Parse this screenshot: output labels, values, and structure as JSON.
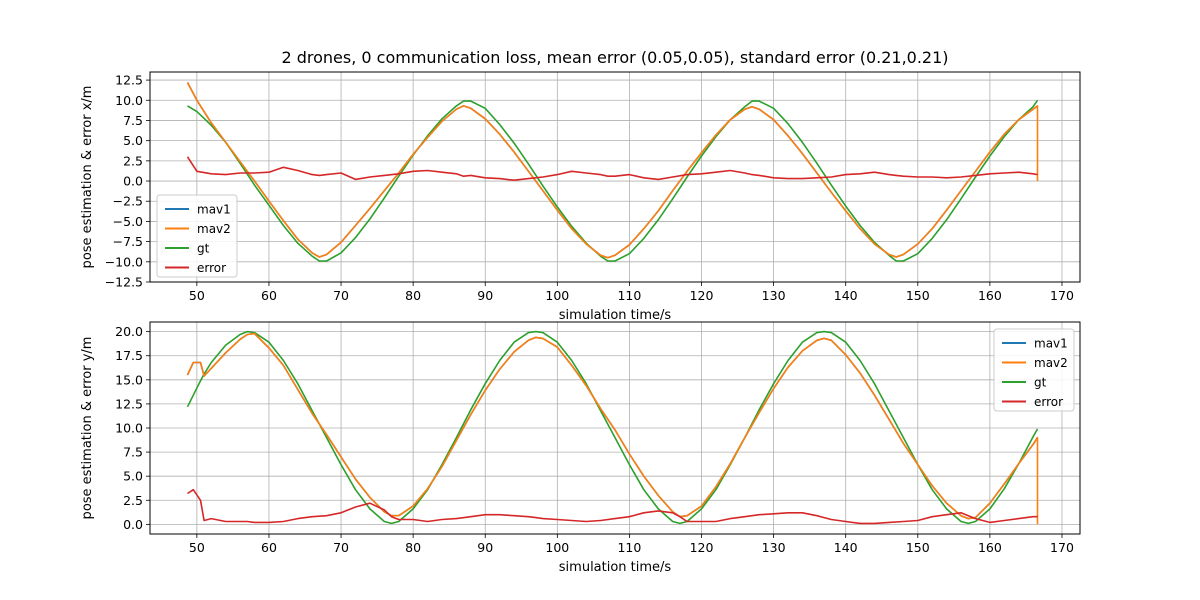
{
  "figure": {
    "title": "2 drones, 0 communication loss, mean error (0.05,0.05), standard error (0.21,0.21)"
  },
  "colors": {
    "mav1": "#1f77b4",
    "mav2": "#ff7f0e",
    "gt": "#2ca02c",
    "error": "#d62728",
    "grid": "#b0b0b0",
    "axes": "#000000"
  },
  "chart_data": [
    {
      "type": "line",
      "xlabel": "simulation time/s",
      "ylabel": "pose estimation & error x/m",
      "xlim": [
        43.5,
        172.5
      ],
      "ylim": [
        -12.5,
        13.5
      ],
      "x_ticks": [
        50,
        60,
        70,
        80,
        90,
        100,
        110,
        120,
        130,
        140,
        150,
        160,
        170
      ],
      "x_tick_labels": [
        "50",
        "60",
        "70",
        "80",
        "90",
        "100",
        "110",
        "120",
        "130",
        "140",
        "150",
        "160",
        "170"
      ],
      "y_ticks": [
        -12.5,
        -10.0,
        -7.5,
        -5.0,
        -2.5,
        0.0,
        2.5,
        5.0,
        7.5,
        10.0,
        12.5
      ],
      "y_tick_labels": [
        "−12.5",
        "−10.0",
        "−7.5",
        "−5.0",
        "−2.5",
        "0.0",
        "2.5",
        "5.0",
        "7.5",
        "10.0",
        "12.5"
      ],
      "grid": true,
      "legend_position": "center-left",
      "x": [
        48.7,
        50,
        52,
        54,
        56,
        58,
        60,
        62,
        64,
        66,
        67,
        68,
        70,
        72,
        74,
        76,
        78,
        80,
        82,
        84,
        86,
        87,
        88,
        90,
        92,
        94,
        96,
        98,
        100,
        102,
        104,
        106,
        107,
        108,
        110,
        112,
        114,
        116,
        118,
        120,
        122,
        124,
        126,
        127,
        128,
        130,
        132,
        134,
        136,
        138,
        140,
        142,
        144,
        146,
        147,
        148,
        150,
        152,
        154,
        156,
        158,
        160,
        162,
        164,
        166,
        166.6
      ],
      "series": [
        {
          "name": "mav1",
          "values": [
            12.2,
            10.0,
            7.2,
            4.8,
            2.4,
            0.0,
            -2.5,
            -4.9,
            -7.2,
            -8.9,
            -9.4,
            -9.1,
            -7.6,
            -5.5,
            -3.4,
            -1.2,
            1.0,
            3.3,
            5.4,
            7.4,
            8.9,
            9.3,
            9.0,
            7.7,
            5.8,
            3.6,
            1.2,
            -1.2,
            -3.6,
            -5.9,
            -7.8,
            -9.2,
            -9.5,
            -9.2,
            -7.9,
            -5.9,
            -3.7,
            -1.2,
            1.2,
            3.5,
            5.7,
            7.6,
            8.9,
            9.2,
            8.9,
            7.6,
            5.6,
            3.4,
            1.0,
            -1.4,
            -3.7,
            -5.9,
            -7.8,
            -9.1,
            -9.4,
            -9.1,
            -7.8,
            -5.9,
            -3.6,
            -1.2,
            1.2,
            3.6,
            5.8,
            7.6,
            8.9,
            9.3
          ]
        },
        {
          "name": "mav2",
          "values": [
            12.2,
            10.0,
            7.2,
            4.8,
            2.4,
            0.0,
            -2.5,
            -4.9,
            -7.2,
            -8.9,
            -9.4,
            -9.1,
            -7.6,
            -5.5,
            -3.4,
            -1.2,
            1.0,
            3.3,
            5.4,
            7.4,
            8.9,
            9.3,
            9.0,
            7.7,
            5.8,
            3.6,
            1.2,
            -1.2,
            -3.6,
            -5.9,
            -7.8,
            -9.2,
            -9.5,
            -9.2,
            -7.9,
            -5.9,
            -3.7,
            -1.2,
            1.2,
            3.5,
            5.7,
            7.6,
            8.9,
            9.2,
            8.9,
            7.6,
            5.6,
            3.4,
            1.0,
            -1.4,
            -3.7,
            -5.9,
            -7.8,
            -9.1,
            -9.4,
            -9.1,
            -7.8,
            -5.9,
            -3.6,
            -1.2,
            1.2,
            3.6,
            5.8,
            7.6,
            8.9,
            9.3
          ]
        },
        {
          "name": "gt",
          "values": [
            9.3,
            8.6,
            6.9,
            4.8,
            2.2,
            -0.5,
            -3.0,
            -5.5,
            -7.7,
            -9.3,
            -9.9,
            -9.9,
            -8.9,
            -7.0,
            -4.7,
            -2.1,
            0.6,
            3.2,
            5.6,
            7.7,
            9.3,
            9.9,
            9.9,
            9.0,
            7.0,
            4.7,
            2.1,
            -0.6,
            -3.2,
            -5.6,
            -7.7,
            -9.3,
            -9.9,
            -9.9,
            -9.0,
            -7.1,
            -4.8,
            -2.2,
            0.5,
            3.1,
            5.5,
            7.6,
            9.2,
            9.9,
            9.9,
            9.0,
            7.1,
            4.8,
            2.2,
            -0.5,
            -3.1,
            -5.5,
            -7.6,
            -9.2,
            -9.9,
            -9.9,
            -9.0,
            -7.1,
            -4.8,
            -2.2,
            0.5,
            3.1,
            5.5,
            7.6,
            9.2,
            10.0
          ]
        },
        {
          "name": "error",
          "values": [
            3.0,
            1.2,
            0.9,
            0.8,
            1.0,
            1.0,
            1.1,
            1.7,
            1.3,
            0.8,
            0.7,
            0.8,
            1.0,
            0.2,
            0.5,
            0.7,
            0.9,
            1.2,
            1.3,
            1.1,
            0.9,
            0.6,
            0.7,
            0.4,
            0.3,
            0.1,
            0.3,
            0.5,
            0.8,
            1.2,
            1.0,
            0.8,
            0.6,
            0.6,
            0.8,
            0.4,
            0.2,
            0.5,
            0.8,
            0.9,
            1.1,
            1.3,
            1.0,
            0.8,
            0.7,
            0.4,
            0.3,
            0.3,
            0.4,
            0.5,
            0.8,
            0.9,
            1.1,
            0.8,
            0.7,
            0.6,
            0.5,
            0.5,
            0.4,
            0.5,
            0.7,
            0.9,
            1.0,
            1.1,
            0.9,
            0.8
          ]
        }
      ]
    },
    {
      "type": "line",
      "xlabel": "simulation time/s",
      "ylabel": "pose estimation & error y/m",
      "xlim": [
        43.5,
        172.5
      ],
      "ylim": [
        -1.0,
        21.0
      ],
      "x_ticks": [
        50,
        60,
        70,
        80,
        90,
        100,
        110,
        120,
        130,
        140,
        150,
        160,
        170
      ],
      "x_tick_labels": [
        "50",
        "60",
        "70",
        "80",
        "90",
        "100",
        "110",
        "120",
        "130",
        "140",
        "150",
        "160",
        "170"
      ],
      "y_ticks": [
        0.0,
        2.5,
        5.0,
        7.5,
        10.0,
        12.5,
        15.0,
        17.5,
        20.0
      ],
      "y_tick_labels": [
        "0.0",
        "2.5",
        "5.0",
        "7.5",
        "10.0",
        "12.5",
        "15.0",
        "17.5",
        "20.0"
      ],
      "grid": true,
      "legend_position": "top-right",
      "x": [
        48.7,
        49.5,
        50.5,
        51,
        52,
        54,
        56,
        57,
        58,
        60,
        62,
        64,
        66,
        68,
        70,
        72,
        74,
        76,
        77,
        78,
        80,
        82,
        84,
        86,
        88,
        90,
        92,
        94,
        96,
        97,
        98,
        100,
        102,
        104,
        106,
        108,
        110,
        112,
        114,
        116,
        117,
        118,
        120,
        122,
        124,
        126,
        128,
        130,
        132,
        134,
        136,
        137,
        138,
        140,
        142,
        144,
        146,
        148,
        150,
        152,
        154,
        156,
        157,
        158,
        160,
        162,
        164,
        166,
        166.6
      ],
      "series": [
        {
          "name": "mav1",
          "values": [
            15.5,
            16.8,
            16.8,
            15.4,
            16.2,
            17.8,
            19.2,
            19.7,
            19.8,
            18.3,
            16.5,
            14.0,
            11.5,
            9.3,
            7.0,
            4.7,
            2.8,
            1.3,
            0.9,
            0.9,
            1.9,
            3.7,
            6.0,
            8.7,
            11.4,
            13.9,
            16.1,
            17.9,
            19.1,
            19.4,
            19.3,
            18.4,
            16.5,
            14.4,
            12.0,
            9.8,
            7.3,
            5.0,
            3.0,
            1.3,
            0.8,
            0.9,
            1.9,
            3.9,
            6.3,
            9.0,
            11.6,
            14.1,
            16.3,
            18.0,
            19.1,
            19.3,
            19.1,
            17.6,
            15.7,
            13.4,
            10.9,
            8.4,
            6.2,
            4.0,
            2.2,
            0.9,
            0.6,
            0.7,
            2.2,
            4.2,
            6.3,
            8.3,
            9.0
          ]
        },
        {
          "name": "mav2",
          "values": [
            15.5,
            16.8,
            16.8,
            15.4,
            16.2,
            17.8,
            19.2,
            19.7,
            19.8,
            18.3,
            16.5,
            14.0,
            11.5,
            9.3,
            7.0,
            4.7,
            2.8,
            1.3,
            0.9,
            0.9,
            1.9,
            3.7,
            6.0,
            8.7,
            11.4,
            13.9,
            16.1,
            17.9,
            19.1,
            19.4,
            19.3,
            18.4,
            16.5,
            14.4,
            12.0,
            9.8,
            7.3,
            5.0,
            3.0,
            1.3,
            0.8,
            0.9,
            1.9,
            3.9,
            6.3,
            9.0,
            11.6,
            14.1,
            16.3,
            18.0,
            19.1,
            19.3,
            19.1,
            17.6,
            15.7,
            13.4,
            10.9,
            8.4,
            6.2,
            4.0,
            2.2,
            0.9,
            0.6,
            0.7,
            2.2,
            4.2,
            6.3,
            8.3,
            9.0
          ]
        },
        {
          "name": "gt",
          "values": [
            12.2,
            13.4,
            14.9,
            15.6,
            16.8,
            18.6,
            19.7,
            20.0,
            19.9,
            18.9,
            17.0,
            14.6,
            11.8,
            9.0,
            6.2,
            3.6,
            1.6,
            0.3,
            0.1,
            0.3,
            1.6,
            3.6,
            6.2,
            9.0,
            11.9,
            14.6,
            17.0,
            18.9,
            19.9,
            20.0,
            19.9,
            18.9,
            17.0,
            14.6,
            11.8,
            9.0,
            6.2,
            3.6,
            1.6,
            0.3,
            0.1,
            0.3,
            1.6,
            3.6,
            6.2,
            9.0,
            11.9,
            14.6,
            17.0,
            18.9,
            19.9,
            20.0,
            19.9,
            18.9,
            17.0,
            14.6,
            11.8,
            9.0,
            6.2,
            3.6,
            1.6,
            0.3,
            0.1,
            0.3,
            1.6,
            3.7,
            6.3,
            9.1,
            9.9
          ]
        },
        {
          "name": "error",
          "values": [
            3.2,
            3.6,
            2.5,
            0.4,
            0.6,
            0.3,
            0.3,
            0.3,
            0.2,
            0.2,
            0.3,
            0.6,
            0.8,
            0.9,
            1.2,
            1.8,
            2.2,
            1.5,
            0.8,
            0.5,
            0.5,
            0.3,
            0.5,
            0.6,
            0.8,
            1.0,
            1.0,
            0.9,
            0.8,
            0.7,
            0.6,
            0.5,
            0.4,
            0.3,
            0.4,
            0.6,
            0.8,
            1.2,
            1.4,
            1.2,
            0.8,
            0.3,
            0.3,
            0.3,
            0.6,
            0.8,
            1.0,
            1.1,
            1.2,
            1.2,
            0.9,
            0.7,
            0.5,
            0.3,
            0.1,
            0.1,
            0.2,
            0.3,
            0.4,
            0.8,
            1.0,
            1.2,
            0.9,
            0.6,
            0.2,
            0.4,
            0.6,
            0.8,
            0.8
          ]
        }
      ]
    }
  ]
}
